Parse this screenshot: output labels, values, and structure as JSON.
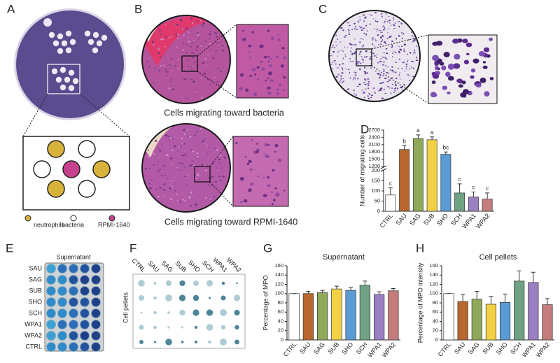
{
  "panel_labels": [
    "A",
    "B",
    "C",
    "D",
    "E",
    "F",
    "G",
    "H"
  ],
  "panel_a": {
    "legend": [
      "neutrophils",
      "bacteria",
      "RPMI-1640"
    ]
  },
  "panel_b": {
    "captions": [
      "Cells migrating toward bacteria",
      "Cells migrating toward RPMI-1640"
    ]
  },
  "panel_e": {
    "title": "Supernatant",
    "rows": [
      "SAU",
      "SAG",
      "SUB",
      "SHO",
      "SCH",
      "WPA1",
      "WPA2",
      "CTRL"
    ]
  },
  "panel_f": {
    "y_label": "Cell pellets",
    "columns": [
      "CTRL",
      "SAU",
      "SAG",
      "SUB",
      "SHO",
      "SCH",
      "WPA1",
      "WPA2"
    ]
  },
  "chart_data": [
    {
      "type": "bar",
      "y_label": "Number of migrating cells",
      "categories": [
        "CTRL",
        "SAU",
        "SAG",
        "SUB",
        "SHO",
        "SCH",
        "WPA1",
        "WPA2"
      ],
      "values": [
        80,
        1900,
        2350,
        2300,
        1700,
        90,
        70,
        60
      ],
      "errors": [
        35,
        150,
        150,
        120,
        100,
        45,
        25,
        30
      ],
      "letters": [
        "c",
        "b",
        "a",
        "a",
        "bc",
        "c",
        "c",
        "c"
      ],
      "colors": [
        "#ffffff",
        "#b8672f",
        "#8fa85a",
        "#f2d244",
        "#5b9bd5",
        "#6fa383",
        "#9a7fc2",
        "#c47c7c"
      ],
      "ylim": [
        0,
        2700
      ],
      "y_break": [
        200,
        1200
      ],
      "yticks": [
        0,
        50,
        100,
        150,
        200,
        1200,
        1500,
        1800,
        2100,
        2400,
        2700
      ]
    },
    {
      "type": "bar",
      "title": "Supernatant",
      "y_label": "Percentage of MPO",
      "categories": [
        "CTRL",
        "SAU",
        "SAG",
        "SUB",
        "SHO",
        "SCH",
        "WPA1",
        "WPA2"
      ],
      "values": [
        100,
        100,
        102,
        110,
        107,
        118,
        98,
        106
      ],
      "errors": [
        0,
        5,
        5,
        6,
        6,
        9,
        6,
        5
      ],
      "colors": [
        "#ffffff",
        "#b8672f",
        "#8fa85a",
        "#f2d244",
        "#5b9bd5",
        "#6fa383",
        "#9a7fc2",
        "#c47c7c"
      ],
      "ylim": [
        0,
        160
      ],
      "yticks": [
        0,
        20,
        40,
        60,
        80,
        100,
        120,
        140,
        160
      ]
    },
    {
      "type": "bar",
      "title": "Cell pellets",
      "y_label": "Percentage of MPO intensity",
      "categories": [
        "CTRL",
        "SAU",
        "SAG",
        "SUB",
        "SHO",
        "SCH",
        "WPA1",
        "WPA2"
      ],
      "values": [
        100,
        83,
        88,
        77,
        81,
        127,
        124,
        76
      ],
      "errors": [
        0,
        15,
        17,
        17,
        18,
        22,
        22,
        13
      ],
      "colors": [
        "#ffffff",
        "#b8672f",
        "#8fa85a",
        "#f2d244",
        "#5b9bd5",
        "#6fa383",
        "#9a7fc2",
        "#c47c7c"
      ],
      "ylim": [
        0,
        160
      ],
      "yticks": [
        0,
        20,
        40,
        60,
        80,
        100,
        120,
        140,
        160
      ]
    }
  ]
}
